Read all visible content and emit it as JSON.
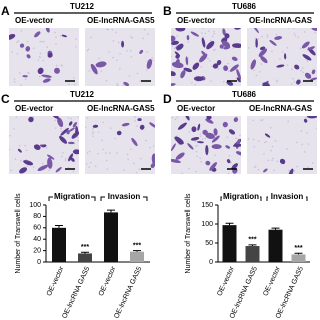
{
  "panels": [
    {
      "letter": "A",
      "cell_line": "TU212",
      "images": [
        "OE-vector",
        "OE-lncRNA-GAS5"
      ]
    },
    {
      "letter": "B",
      "cell_line": "TU686",
      "images": [
        "OE-vector",
        "OE-lncRNA-GAS"
      ]
    },
    {
      "letter": "C",
      "cell_line": "TU212",
      "images": [
        "OE-vector",
        "OE-lncRNA-GAS5"
      ]
    },
    {
      "letter": "D",
      "cell_line": "TU686",
      "images": [
        "OE-vector",
        "OE-lncRNA-GAS"
      ]
    }
  ],
  "chart_data": [
    {
      "type": "bar",
      "y_label": "Number of Transwell cells",
      "categories": [
        "OE-vector",
        "OE-lncRNA GAS5",
        "OE-vector",
        "OE-lncRNA GAS5"
      ],
      "values": [
        60,
        15,
        87,
        18
      ],
      "errors": [
        4,
        2,
        4,
        2
      ],
      "colors": [
        "#111111",
        "#444444",
        "#111111",
        "#a6a6a6"
      ],
      "significance": [
        null,
        "***",
        null,
        "***"
      ],
      "groups": [
        {
          "label": "Migration",
          "size": 2
        },
        {
          "label": "Invasion",
          "size": 2
        }
      ],
      "ylim": [
        0,
        100
      ],
      "yticks": [
        0,
        20,
        40,
        60,
        80,
        100
      ]
    },
    {
      "type": "bar",
      "y_label": "Number of Transwell cells",
      "categories": [
        "OE-vector",
        "OE-lncRNA GAS5",
        "OE-vector",
        "OE-lncRNA GAS5"
      ],
      "values": [
        97,
        42,
        85,
        20
      ],
      "errors": [
        5,
        3,
        4,
        3
      ],
      "colors": [
        "#111111",
        "#444444",
        "#111111",
        "#a6a6a6"
      ],
      "significance": [
        null,
        "***",
        null,
        "***"
      ],
      "groups": [
        {
          "label": "Migration",
          "size": 2
        },
        {
          "label": "Invasion",
          "size": 2
        }
      ],
      "ylim": [
        0,
        150
      ],
      "yticks": [
        0,
        50,
        100,
        150
      ]
    }
  ]
}
